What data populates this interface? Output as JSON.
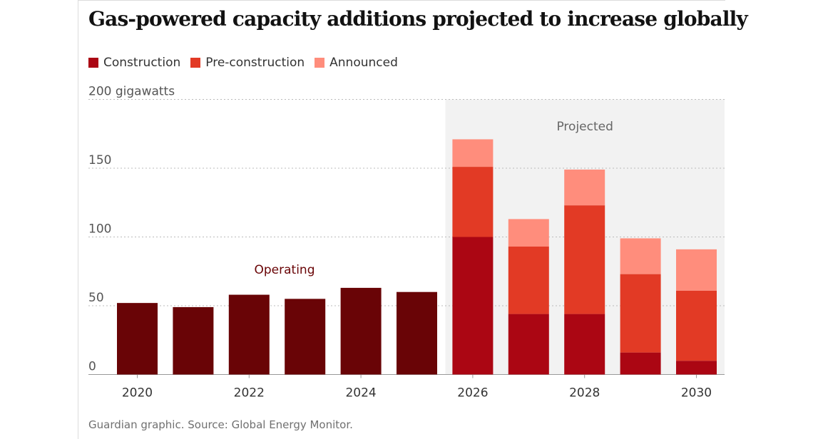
{
  "title": "Gas-powered capacity additions projected to increase globally",
  "source": "Guardian graphic. Source: Global Energy Monitor.",
  "chart_data": {
    "type": "bar",
    "stacked": true,
    "title": "Gas-powered capacity additions projected to increase globally",
    "ylabel": "200 gigawatts",
    "unit": "gigawatts",
    "ylim": [
      0,
      200
    ],
    "yticks": [
      0,
      50,
      100,
      150,
      200
    ],
    "ytick_labels": [
      "0",
      "50",
      "100",
      "150",
      "200 gigawatts"
    ],
    "grid": true,
    "legend_position": "top-left",
    "categories": [
      "2020",
      "2021",
      "2022",
      "2023",
      "2024",
      "2025",
      "2026",
      "2027",
      "2028",
      "2029",
      "2030"
    ],
    "xtick_labels": [
      "2020",
      "2022",
      "2024",
      "2026",
      "2028",
      "2030"
    ],
    "operating": {
      "label": "Operating",
      "values": [
        52,
        49,
        58,
        55,
        63,
        60,
        null,
        null,
        null,
        null,
        null
      ],
      "color": "#690406"
    },
    "series": [
      {
        "name": "Construction",
        "color": "#ab0613",
        "values": [
          null,
          null,
          null,
          null,
          null,
          null,
          100,
          44,
          44,
          16,
          10
        ]
      },
      {
        "name": "Pre-construction",
        "color": "#e23a25",
        "values": [
          null,
          null,
          null,
          null,
          null,
          null,
          51,
          49,
          79,
          57,
          51
        ]
      },
      {
        "name": "Announced",
        "color": "#ff8d7c",
        "values": [
          null,
          null,
          null,
          null,
          null,
          null,
          20,
          20,
          26,
          26,
          30
        ]
      }
    ],
    "annotations": [
      {
        "text": "Operating",
        "color": "#690406"
      },
      {
        "text": "Projected",
        "range": [
          "2026",
          "2030"
        ],
        "shade": "#f2f2f2",
        "color": "#666666"
      }
    ]
  }
}
